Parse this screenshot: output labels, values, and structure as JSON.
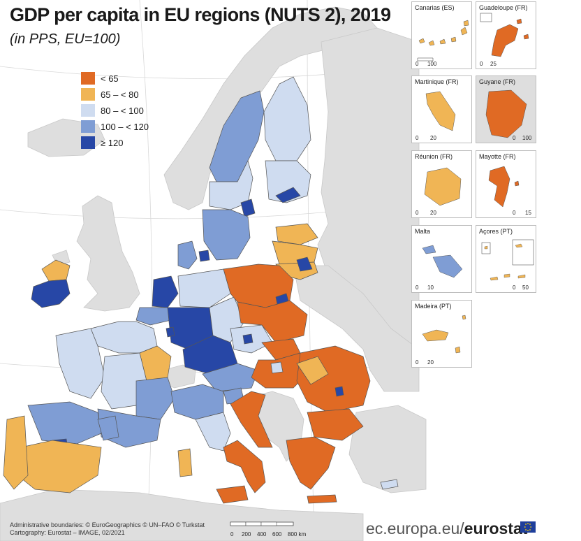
{
  "map": {
    "title": "GDP per capita in EU regions (NUTS 2), 2019",
    "subtitle": "(in PPS, EU=100)",
    "legend": [
      {
        "label": "< 65",
        "color": "#e06a24"
      },
      {
        "label": "65 – < 80",
        "color": "#f0b555"
      },
      {
        "label": "80 – < 100",
        "color": "#cfdcf0"
      },
      {
        "label": "100 – < 120",
        "color": "#7f9dd4"
      },
      {
        "label": "≥ 120",
        "color": "#2747a6"
      }
    ],
    "colors": {
      "sea": "#ffffff",
      "non_eu": "#dedede",
      "border": "#555555"
    }
  },
  "insets": [
    {
      "title": "Canarias (ES)",
      "scale": [
        "0",
        "100"
      ]
    },
    {
      "title": "Guadeloupe (FR)",
      "scale": [
        "0",
        "25"
      ]
    },
    {
      "title": "Martinique (FR)",
      "scale": [
        "0",
        "20"
      ]
    },
    {
      "title": "Guyane (FR)",
      "scale": [
        "0",
        "100"
      ]
    },
    {
      "title": "Réunion (FR)",
      "scale": [
        "0",
        "20"
      ]
    },
    {
      "title": "Mayotte (FR)",
      "scale": [
        "0",
        "15"
      ]
    },
    {
      "title": "Malta",
      "scale": [
        "0",
        "10"
      ]
    },
    {
      "title": "Açores (PT)",
      "scale": [
        "0",
        "50"
      ]
    },
    {
      "title": "Madeira (PT)",
      "scale": [
        "0",
        "20"
      ]
    }
  ],
  "footer": {
    "line1": "Administrative boundaries: © EuroGeographics © UN–FAO © Turkstat",
    "line2": "Cartography: Eurostat – IMAGE, 02/2021",
    "scale_ticks": [
      "0",
      "200",
      "400",
      "600",
      "800 km"
    ],
    "brand_prefix": "ec.europa.eu/",
    "brand_name": "eurostat"
  }
}
